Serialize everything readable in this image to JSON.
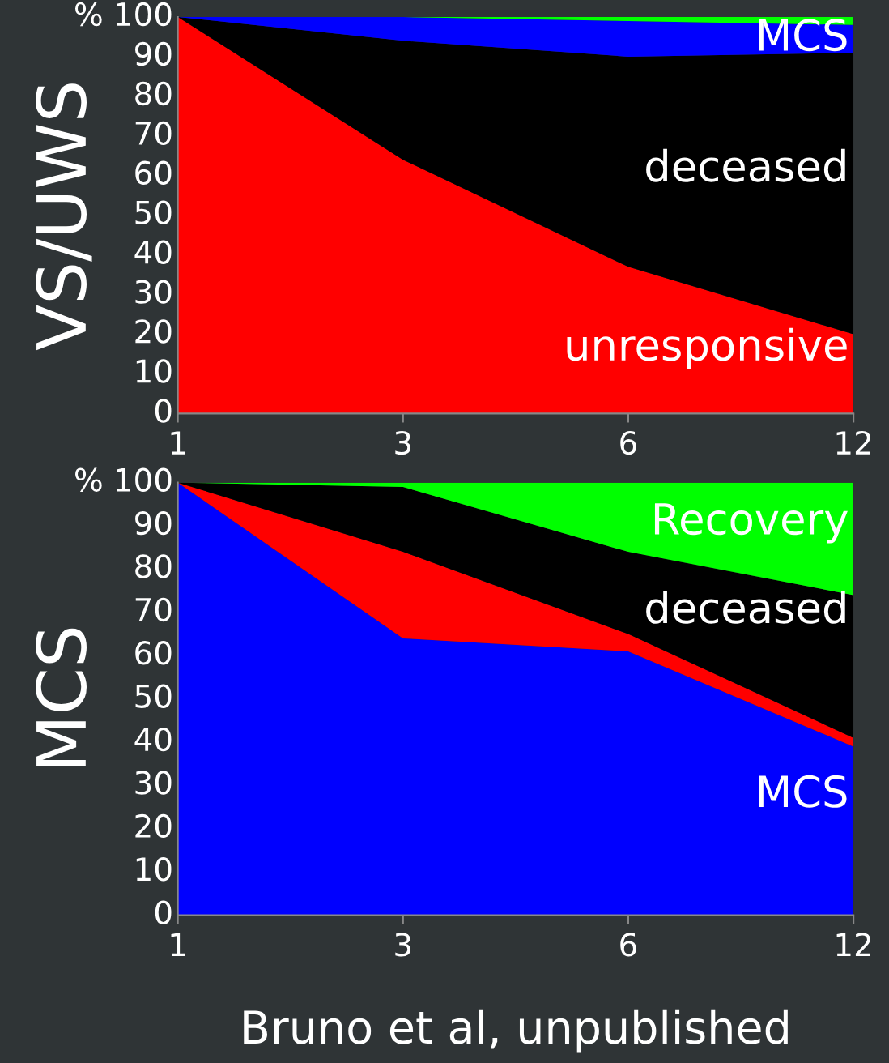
{
  "chart_data": [
    {
      "type": "area",
      "stacked": true,
      "ylabel": "VS/UWS",
      "categories": [
        "1",
        "3",
        "6",
        "12"
      ],
      "ylim": [
        0,
        100
      ],
      "yticks": [
        0,
        10,
        20,
        30,
        40,
        50,
        60,
        70,
        80,
        90,
        100
      ],
      "annotations": [
        "%"
      ],
      "series": [
        {
          "name": "unresponsive",
          "color": "#ff0000",
          "values": [
            100,
            64,
            37,
            20
          ]
        },
        {
          "name": "deceased",
          "color": "#000000",
          "values": [
            0,
            30,
            53,
            71
          ]
        },
        {
          "name": "MCS",
          "color": "#0000ff",
          "values": [
            0,
            6,
            9,
            7
          ]
        },
        {
          "color": "#00ff00",
          "values": [
            0,
            0,
            1,
            2
          ]
        }
      ]
    },
    {
      "type": "area",
      "stacked": true,
      "ylabel": "MCS",
      "categories": [
        "1",
        "3",
        "6",
        "12"
      ],
      "ylim": [
        0,
        100
      ],
      "yticks": [
        0,
        10,
        20,
        30,
        40,
        50,
        60,
        70,
        80,
        90,
        100
      ],
      "annotations": [
        "%",
        "Bruno et al, unpublished"
      ],
      "series": [
        {
          "name": "MCS",
          "color": "#0000ff",
          "values": [
            100,
            64,
            61,
            39
          ]
        },
        {
          "color": "#ff0000",
          "values": [
            0,
            20,
            4,
            2
          ]
        },
        {
          "name": "deceased",
          "color": "#000000",
          "values": [
            0,
            15,
            19,
            33
          ]
        },
        {
          "name": "Recovery",
          "color": "#00ff00",
          "values": [
            0,
            1,
            16,
            26
          ]
        }
      ]
    }
  ]
}
